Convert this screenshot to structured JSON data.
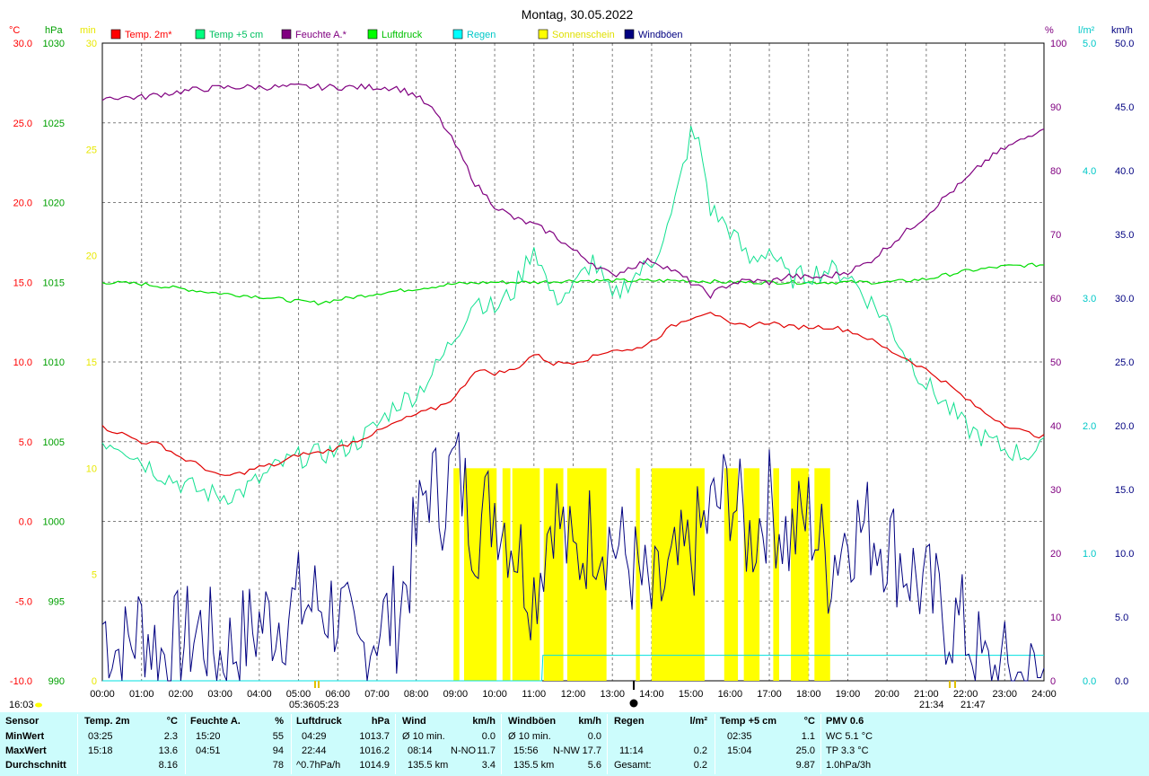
{
  "title": "Montag, 30.05.2022",
  "axes": {
    "temp_unit": "°C",
    "hpa_unit": "hPa",
    "min_unit": "min",
    "pct_unit": "%",
    "rain_unit": "l/m²",
    "kmh_unit": "km/h",
    "temp_ticks": [
      "30.0",
      "25.0",
      "20.0",
      "15.0",
      "10.0",
      "5.0",
      "0.0",
      "-5.0",
      "-10.0"
    ],
    "hpa_ticks": [
      "1030",
      "1025",
      "1020",
      "1015",
      "1010",
      "1005",
      "1000",
      "995",
      "990"
    ],
    "min_ticks": [
      "30",
      "25",
      "20",
      "15",
      "10",
      "5",
      "0"
    ],
    "pct_ticks": [
      "100",
      "90",
      "80",
      "70",
      "60",
      "50",
      "40",
      "30",
      "20",
      "10",
      "0"
    ],
    "rain_ticks": [
      "5.0",
      "4.0",
      "3.0",
      "2.0",
      "1.0",
      "0.0"
    ],
    "kmh_ticks": [
      "50.0",
      "45.0",
      "40.0",
      "35.0",
      "30.0",
      "25.0",
      "20.0",
      "15.0",
      "10.0",
      "5.0",
      "0.0"
    ],
    "time_ticks": [
      "00:00",
      "01:00",
      "02:00",
      "03:00",
      "04:00",
      "05:00",
      "06:00",
      "07:00",
      "08:00",
      "09:00",
      "10:00",
      "11:00",
      "12:00",
      "13:00",
      "14:00",
      "15:00",
      "16:00",
      "17:00",
      "18:00",
      "19:00",
      "20:00",
      "21:00",
      "22:00",
      "23:00",
      "24:00"
    ]
  },
  "legend": [
    {
      "label": "Temp. 2m*",
      "color": "#ff0000",
      "text_color": "#ff0000"
    },
    {
      "label": "Temp +5 cm",
      "color": "#00ff80",
      "text_color": "#00c060"
    },
    {
      "label": "Feuchte A.*",
      "color": "#800080",
      "text_color": "#800080"
    },
    {
      "label": "Luftdruck",
      "color": "#00ff00",
      "text_color": "#00c000"
    },
    {
      "label": "Regen",
      "color": "#00ffff",
      "text_color": "#00c8c8"
    },
    {
      "label": "Sonnenschein",
      "color": "#ffff00",
      "text_color": "#e0e000"
    },
    {
      "label": "Windböen",
      "color": "#000080",
      "text_color": "#000080"
    }
  ],
  "colors": {
    "temp2m": "#e00000",
    "temp5cm": "#10e090",
    "humidity": "#800080",
    "pressure": "#00dd00",
    "rain": "#00e0e0",
    "sun": "#ffff00",
    "gusts": "#000080",
    "grid": "#808080"
  },
  "bottom_marks": {
    "current_time": "16:03",
    "sunrise": "05:36",
    "sunrise2": "05:23",
    "sunset": "21:34",
    "sunset2": "21:47"
  },
  "chart_data": {
    "type": "line",
    "title": "Montag, 30.05.2022",
    "x_range_hours": [
      0,
      24
    ],
    "series": [
      {
        "name": "Temp. 2m*",
        "axis": "°C",
        "ylim": [
          -10,
          30
        ],
        "x": [
          0,
          0.5,
          1,
          1.5,
          2,
          2.5,
          3,
          3.5,
          4,
          4.5,
          5,
          5.5,
          6,
          6.5,
          7,
          7.5,
          8,
          8.5,
          9,
          9.5,
          10,
          10.5,
          11,
          11.5,
          12,
          12.5,
          13,
          13.5,
          14,
          14.5,
          15,
          15.5,
          16,
          16.5,
          17,
          17.5,
          18,
          18.5,
          19,
          19.5,
          20,
          20.5,
          21,
          21.5,
          22,
          22.5,
          23,
          23.5,
          24
        ],
        "y": [
          5.9,
          5.5,
          5.0,
          4.8,
          4.0,
          3.5,
          2.8,
          3.0,
          3.4,
          3.6,
          4.2,
          4.3,
          4.6,
          5.1,
          5.6,
          6.2,
          6.7,
          7.1,
          7.8,
          9.5,
          9.3,
          9.5,
          10.5,
          9.9,
          10.0,
          10.3,
          10.8,
          10.7,
          11.3,
          12.2,
          12.8,
          13.2,
          12.3,
          12.3,
          12.5,
          12.2,
          12.2,
          12.2,
          12.0,
          11.5,
          10.8,
          10.2,
          9.5,
          8.7,
          7.7,
          6.8,
          6.1,
          5.6,
          5.3
        ]
      },
      {
        "name": "Temp +5 cm",
        "axis": "°C",
        "ylim": [
          -10,
          30
        ],
        "x": [
          0,
          0.5,
          1,
          1.5,
          2,
          2.5,
          3,
          3.5,
          4,
          4.5,
          5,
          5.5,
          6,
          6.5,
          7,
          7.5,
          8,
          8.5,
          9,
          9.5,
          10,
          10.5,
          11,
          11.5,
          12,
          12.5,
          13,
          13.5,
          14,
          14.5,
          15,
          15.25,
          15.5,
          16,
          16.5,
          17,
          17.5,
          18,
          18.5,
          19,
          19.5,
          20,
          20.5,
          21,
          21.5,
          22,
          22.5,
          23,
          23.5,
          24
        ],
        "y": [
          5.1,
          4.8,
          3.8,
          3.0,
          2.4,
          1.9,
          1.6,
          1.8,
          2.6,
          3.5,
          4.0,
          4.2,
          4.4,
          5.0,
          6.0,
          7.4,
          8.0,
          9.6,
          11.7,
          14.0,
          13.3,
          14.5,
          17.3,
          13.9,
          14.6,
          16.4,
          13.9,
          15.3,
          16.2,
          19.0,
          24.3,
          23.5,
          19.6,
          18.3,
          16.3,
          17.1,
          15.2,
          15.5,
          15.8,
          15.5,
          14.0,
          12.6,
          10.4,
          8.6,
          7.3,
          5.9,
          5.2,
          4.5,
          4.2,
          4.6
        ]
      },
      {
        "name": "Feuchte A.*",
        "axis": "%",
        "ylim": [
          0,
          100
        ],
        "x": [
          0,
          0.5,
          1,
          1.5,
          2,
          2.5,
          3,
          3.5,
          4,
          4.5,
          5,
          5.5,
          6,
          6.5,
          7,
          7.5,
          8,
          8.5,
          9,
          9.5,
          10,
          10.5,
          11,
          11.5,
          12,
          12.5,
          13,
          13.5,
          14,
          14.5,
          15,
          15.5,
          16,
          16.5,
          17,
          17.5,
          18,
          18.5,
          19,
          19.5,
          20,
          20.5,
          21,
          21.5,
          22,
          22.5,
          23,
          23.5,
          24
        ],
        "y": [
          91.5,
          91.5,
          91.5,
          92.0,
          92.4,
          92.8,
          93.0,
          93.1,
          93.1,
          93.1,
          93.2,
          93.1,
          93.1,
          93.1,
          93.1,
          93.0,
          91.8,
          89,
          84,
          78,
          74.5,
          72.5,
          71.5,
          70,
          67.5,
          65.5,
          63.5,
          65,
          66,
          64.5,
          62.5,
          60.5,
          62.3,
          62.8,
          62.5,
          63.5,
          63.2,
          63.4,
          64.2,
          65.5,
          68,
          70.5,
          73,
          76,
          78.5,
          81.5,
          83.5,
          85,
          87
        ]
      },
      {
        "name": "Luftdruck",
        "axis": "hPa",
        "ylim": [
          990,
          1030
        ],
        "x": [
          0,
          1,
          2,
          3,
          4,
          5,
          5.5,
          6,
          7,
          8,
          9,
          10,
          11,
          12,
          13,
          14,
          15,
          16,
          17,
          18,
          19,
          20,
          21,
          22,
          23,
          24
        ],
        "y": [
          1015.0,
          1014.9,
          1014.6,
          1014.3,
          1014.1,
          1013.8,
          1013.7,
          1013.9,
          1014.3,
          1014.6,
          1014.9,
          1015.0,
          1015.0,
          1015.1,
          1015.1,
          1015.1,
          1015.1,
          1015.0,
          1015.0,
          1015.0,
          1015.0,
          1015.0,
          1015.2,
          1015.7,
          1016.0,
          1016.1
        ]
      },
      {
        "name": "Regen",
        "axis": "l/m²",
        "ylim": [
          0,
          5
        ],
        "x": [
          0,
          11.2,
          11.23,
          24
        ],
        "y": [
          0,
          0,
          0.2,
          0.2
        ]
      },
      {
        "name": "Windböen",
        "axis": "km/h",
        "ylim": [
          0,
          50
        ],
        "x": [
          0,
          0.5,
          1,
          1.5,
          2,
          2.5,
          3,
          3.5,
          4,
          4.5,
          5,
          5.5,
          6,
          6.5,
          7,
          7.5,
          8,
          8.3,
          8.6,
          9,
          9.5,
          10,
          10.5,
          11,
          11.5,
          12,
          12.5,
          13,
          13.5,
          14,
          14.5,
          15,
          15.5,
          16,
          16.5,
          17,
          17.5,
          18,
          18.5,
          19,
          19.5,
          20,
          20.5,
          21,
          21.5,
          22,
          22.5,
          23,
          23.5,
          24
        ],
        "y": [
          4.5,
          2,
          4.5,
          2,
          3,
          4,
          2,
          3,
          4.5,
          5,
          6,
          6,
          5.5,
          1.5,
          4.5,
          5,
          11,
          16,
          14,
          17,
          12,
          14,
          11,
          7,
          14,
          9,
          12,
          11,
          9,
          6,
          8,
          10,
          13,
          15,
          11,
          14,
          11,
          13,
          9,
          12,
          12,
          11,
          9,
          7,
          5,
          4,
          0.5,
          0.5,
          0,
          0
        ]
      },
      {
        "name": "Sonnenschein",
        "axis": "min",
        "ylim": [
          0,
          30
        ],
        "bars_from": [
          8.95,
          9.22,
          10.2,
          10.45,
          11.25,
          11.85,
          13.6,
          14.0,
          15.85,
          16.35,
          17.1,
          17.55,
          18.15
        ],
        "bars_to": [
          9.1,
          10.05,
          10.4,
          11.15,
          11.75,
          12.85,
          13.7,
          15.35,
          16.2,
          16.75,
          17.25,
          18.0,
          18.55
        ],
        "y_minutes": [
          10,
          10,
          10,
          10,
          10,
          10,
          10,
          10,
          10,
          10,
          10,
          10,
          10
        ]
      }
    ]
  },
  "stats": {
    "sensor": {
      "title": "Sensor",
      "rows": [
        "MinWert",
        "MaxWert",
        "Durchschnitt"
      ]
    },
    "temp2m": {
      "title": "Temp. 2m",
      "unit": "°C",
      "rows": [
        [
          "03:25",
          "2.3"
        ],
        [
          "15:18",
          "13.6"
        ],
        [
          "",
          "8.16"
        ]
      ]
    },
    "humidity": {
      "title": "Feuchte A.",
      "unit": "%",
      "rows": [
        [
          "15:20",
          "55"
        ],
        [
          "04:51",
          "94"
        ],
        [
          "",
          "78"
        ]
      ]
    },
    "pressure": {
      "title": "Luftdruck",
      "unit": "hPa",
      "rows": [
        [
          "04:29",
          "1013.7"
        ],
        [
          "22:44",
          "1016.2"
        ],
        [
          "^0.7hPa/h",
          "1014.9"
        ]
      ]
    },
    "wind": {
      "title": "Wind",
      "unit": "km/h",
      "rows": [
        [
          "Ø 10 min.",
          "",
          "0.0"
        ],
        [
          "08:14",
          "N-NO",
          "11.7"
        ],
        [
          "135.5 km",
          "",
          "3.4"
        ]
      ]
    },
    "gusts": {
      "title": "Windböen",
      "unit": "km/h",
      "rows": [
        [
          "Ø 10 min.",
          "",
          "0.0"
        ],
        [
          "15:56",
          "N-NW",
          "17.7"
        ],
        [
          "135.5 km",
          "",
          "5.6"
        ]
      ]
    },
    "rain": {
      "title": "Regen",
      "unit": "l/m²",
      "rows": [
        [
          "",
          ""
        ],
        [
          "11:14",
          "0.2"
        ],
        [
          "Gesamt:",
          "0.2"
        ]
      ]
    },
    "temp5": {
      "title": "Temp +5 cm",
      "unit": "°C",
      "rows": [
        [
          "02:35",
          "1.1"
        ],
        [
          "15:04",
          "25.0"
        ],
        [
          "",
          "9.87"
        ]
      ]
    },
    "pmv": {
      "title": "PMV 0.6",
      "rows": [
        "WC 5.1 °C",
        "TP 3.3 °C",
        "1.0hPa/3h"
      ]
    }
  }
}
